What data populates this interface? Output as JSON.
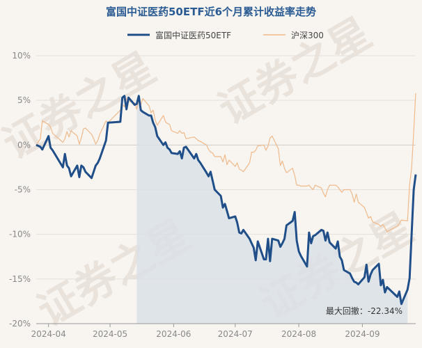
{
  "chart_data": {
    "type": "line",
    "title": "富国中证医药50ETF近6个月累计收益率走势",
    "watermark": "证券之星",
    "ylim": [
      -20,
      10
    ],
    "yticks": [
      "10%",
      "5%",
      "0%",
      "-5%",
      "-10%",
      "-15%",
      "-20%"
    ],
    "ytick_values": [
      10,
      5,
      0,
      -5,
      -10,
      -15,
      -20
    ],
    "xticks": [
      {
        "date": "2024-04-01",
        "label": "2024-04"
      },
      {
        "date": "2024-05-01",
        "label": "2024-05"
      },
      {
        "date": "2024-06-01",
        "label": "2024-06"
      },
      {
        "date": "2024-07-01",
        "label": "2024-07"
      },
      {
        "date": "2024-08-01",
        "label": "2024-08"
      },
      {
        "date": "2024-09-01",
        "label": "2024-09"
      }
    ],
    "legend_position": "top",
    "grid": "horizontal",
    "max_drawdown": {
      "label": "最大回撤：-22.34%",
      "start": "2024-05-14",
      "end": "2024-09-23"
    },
    "series": [
      {
        "name": "富国中证医药50ETF",
        "color": "#1f4e89",
        "x": [
          "2024-03-26",
          "2024-03-28",
          "2024-03-29",
          "2024-04-01",
          "2024-04-02",
          "2024-04-03",
          "2024-04-08",
          "2024-04-09",
          "2024-04-10",
          "2024-04-11",
          "2024-04-12",
          "2024-04-15",
          "2024-04-16",
          "2024-04-17",
          "2024-04-18",
          "2024-04-19",
          "2024-04-22",
          "2024-04-23",
          "2024-04-24",
          "2024-04-25",
          "2024-04-26",
          "2024-04-29",
          "2024-04-30",
          "2024-05-06",
          "2024-05-07",
          "2024-05-08",
          "2024-05-09",
          "2024-05-10",
          "2024-05-13",
          "2024-05-14",
          "2024-05-15",
          "2024-05-16",
          "2024-05-17",
          "2024-05-20",
          "2024-05-21",
          "2024-05-22",
          "2024-05-23",
          "2024-05-24",
          "2024-05-27",
          "2024-05-28",
          "2024-05-29",
          "2024-05-30",
          "2024-05-31",
          "2024-06-03",
          "2024-06-04",
          "2024-06-05",
          "2024-06-06",
          "2024-06-07",
          "2024-06-11",
          "2024-06-12",
          "2024-06-13",
          "2024-06-14",
          "2024-06-17",
          "2024-06-18",
          "2024-06-19",
          "2024-06-20",
          "2024-06-21",
          "2024-06-24",
          "2024-06-25",
          "2024-06-26",
          "2024-06-27",
          "2024-06-28",
          "2024-07-01",
          "2024-07-02",
          "2024-07-03",
          "2024-07-04",
          "2024-07-05",
          "2024-07-08",
          "2024-07-09",
          "2024-07-10",
          "2024-07-11",
          "2024-07-12",
          "2024-07-15",
          "2024-07-16",
          "2024-07-17",
          "2024-07-18",
          "2024-07-19",
          "2024-07-22",
          "2024-07-23",
          "2024-07-24",
          "2024-07-25",
          "2024-07-26",
          "2024-07-29",
          "2024-07-30",
          "2024-07-31",
          "2024-08-01",
          "2024-08-02",
          "2024-08-05",
          "2024-08-06",
          "2024-08-07",
          "2024-08-08",
          "2024-08-09",
          "2024-08-12",
          "2024-08-13",
          "2024-08-14",
          "2024-08-15",
          "2024-08-16",
          "2024-08-19",
          "2024-08-20",
          "2024-08-21",
          "2024-08-22",
          "2024-08-23",
          "2024-08-26",
          "2024-08-27",
          "2024-08-28",
          "2024-08-29",
          "2024-08-30",
          "2024-09-02",
          "2024-09-03",
          "2024-09-04",
          "2024-09-05",
          "2024-09-06",
          "2024-09-09",
          "2024-09-10",
          "2024-09-11",
          "2024-09-12",
          "2024-09-13",
          "2024-09-18",
          "2024-09-19",
          "2024-09-20",
          "2024-09-23",
          "2024-09-24",
          "2024-09-25",
          "2024-09-26",
          "2024-09-27"
        ],
        "values": [
          0.0,
          -0.2,
          -0.5,
          1.0,
          -0.3,
          -0.6,
          -2.5,
          -1.0,
          -2.3,
          -2.6,
          -3.5,
          -2.3,
          -3.6,
          -2.3,
          -2.5,
          -3.0,
          -3.7,
          -3.0,
          -2.3,
          -2.0,
          -1.5,
          0.5,
          2.5,
          2.6,
          5.3,
          5.5,
          4.0,
          5.3,
          4.5,
          4.6,
          5.5,
          3.9,
          3.7,
          3.3,
          3.3,
          2.5,
          2.0,
          1.0,
          0.0,
          0.3,
          -0.3,
          -0.5,
          -0.9,
          -1.0,
          -0.7,
          -1.5,
          -0.3,
          -0.2,
          -1.5,
          -1.0,
          -1.7,
          -2.0,
          -3.1,
          -3.5,
          -3.0,
          -4.0,
          -5.0,
          -5.7,
          -7.0,
          -6.6,
          -7.4,
          -8.2,
          -8.0,
          -8.7,
          -9.8,
          -9.9,
          -9.5,
          -10.5,
          -11.0,
          -11.5,
          -12.9,
          -10.8,
          -12.8,
          -12.8,
          -10.5,
          -13.0,
          -10.5,
          -10.7,
          -11.4,
          -11.0,
          -10.5,
          -9.0,
          -8.5,
          -7.5,
          -10.7,
          -11.9,
          -12.4,
          -13.6,
          -9.8,
          -11.0,
          -10.2,
          -10.1,
          -9.5,
          -9.6,
          -10.7,
          -9.8,
          -10.9,
          -11.6,
          -10.8,
          -12.5,
          -12.9,
          -14.0,
          -14.4,
          -14.9,
          -15.3,
          -15.4,
          -15.6,
          -14.8,
          -13.4,
          -15.3,
          -14.5,
          -14.0,
          -13.3,
          -15.7,
          -15.1,
          -16.5,
          -15.9,
          -17.0,
          -16.4,
          -17.8,
          -16.2,
          -14.9,
          -10.0,
          -5.0,
          -3.3
        ]
      },
      {
        "name": "沪深300",
        "color": "#f0b98a",
        "x": [
          "2024-03-26",
          "2024-03-28",
          "2024-03-29",
          "2024-04-01",
          "2024-04-02",
          "2024-04-03",
          "2024-04-08",
          "2024-04-09",
          "2024-04-10",
          "2024-04-11",
          "2024-04-12",
          "2024-04-15",
          "2024-04-16",
          "2024-04-17",
          "2024-04-18",
          "2024-04-19",
          "2024-04-22",
          "2024-04-23",
          "2024-04-24",
          "2024-04-25",
          "2024-04-26",
          "2024-04-29",
          "2024-04-30",
          "2024-05-06",
          "2024-05-07",
          "2024-05-08",
          "2024-05-09",
          "2024-05-10",
          "2024-05-13",
          "2024-05-14",
          "2024-05-15",
          "2024-05-16",
          "2024-05-17",
          "2024-05-20",
          "2024-05-21",
          "2024-05-22",
          "2024-05-23",
          "2024-05-24",
          "2024-05-27",
          "2024-05-28",
          "2024-05-29",
          "2024-05-30",
          "2024-05-31",
          "2024-06-03",
          "2024-06-04",
          "2024-06-05",
          "2024-06-06",
          "2024-06-07",
          "2024-06-11",
          "2024-06-12",
          "2024-06-13",
          "2024-06-14",
          "2024-06-17",
          "2024-06-18",
          "2024-06-19",
          "2024-06-20",
          "2024-06-21",
          "2024-06-24",
          "2024-06-25",
          "2024-06-26",
          "2024-06-27",
          "2024-06-28",
          "2024-07-01",
          "2024-07-02",
          "2024-07-03",
          "2024-07-04",
          "2024-07-05",
          "2024-07-08",
          "2024-07-09",
          "2024-07-10",
          "2024-07-11",
          "2024-07-12",
          "2024-07-15",
          "2024-07-16",
          "2024-07-17",
          "2024-07-18",
          "2024-07-19",
          "2024-07-22",
          "2024-07-23",
          "2024-07-24",
          "2024-07-25",
          "2024-07-26",
          "2024-07-29",
          "2024-07-30",
          "2024-07-31",
          "2024-08-01",
          "2024-08-02",
          "2024-08-05",
          "2024-08-06",
          "2024-08-07",
          "2024-08-08",
          "2024-08-09",
          "2024-08-12",
          "2024-08-13",
          "2024-08-14",
          "2024-08-15",
          "2024-08-16",
          "2024-08-19",
          "2024-08-20",
          "2024-08-21",
          "2024-08-22",
          "2024-08-23",
          "2024-08-26",
          "2024-08-27",
          "2024-08-28",
          "2024-08-29",
          "2024-08-30",
          "2024-09-02",
          "2024-09-03",
          "2024-09-04",
          "2024-09-05",
          "2024-09-06",
          "2024-09-09",
          "2024-09-10",
          "2024-09-11",
          "2024-09-12",
          "2024-09-13",
          "2024-09-18",
          "2024-09-19",
          "2024-09-20",
          "2024-09-23",
          "2024-09-24",
          "2024-09-25",
          "2024-09-26",
          "2024-09-27"
        ],
        "values": [
          0.0,
          0.7,
          2.7,
          2.3,
          2.0,
          1.3,
          0.3,
          0.7,
          1.5,
          0.9,
          1.6,
          1.0,
          0.1,
          0.8,
          1.8,
          1.9,
          1.2,
          0.7,
          0.1,
          0.5,
          1.2,
          2.7,
          2.5,
          3.9,
          4.5,
          4.3,
          5.2,
          4.9,
          4.7,
          4.0,
          5.3,
          4.5,
          5.2,
          4.4,
          3.6,
          3.9,
          2.8,
          2.2,
          3.3,
          2.6,
          2.4,
          2.3,
          1.6,
          1.3,
          1.6,
          1.3,
          1.4,
          0.7,
          0.9,
          0.7,
          0.5,
          0.4,
          0.0,
          -0.5,
          -0.8,
          -0.9,
          -1.3,
          -1.3,
          -1.9,
          -1.1,
          -2.2,
          -1.7,
          -2.4,
          -2.0,
          -2.7,
          -2.8,
          -3.0,
          -2.0,
          -0.8,
          -0.8,
          -0.6,
          -0.1,
          0.0,
          -0.6,
          -0.1,
          0.8,
          1.0,
          -0.4,
          -2.3,
          -1.8,
          -2.6,
          -3.1,
          -2.6,
          -3.4,
          -4.5,
          -4.5,
          -4.6,
          -4.6,
          -4.5,
          -4.8,
          -5.0,
          -4.5,
          -4.8,
          -5.4,
          -5.8,
          -5.0,
          -4.5,
          -4.5,
          -4.7,
          -5.0,
          -5.3,
          -5.0,
          -5.0,
          -5.5,
          -6.4,
          -5.5,
          -6.4,
          -7.0,
          -7.6,
          -8.2,
          -8.0,
          -8.6,
          -8.9,
          -9.1,
          -8.9,
          -9.3,
          -9.7,
          -9.1,
          -8.8,
          -8.4,
          -8.5,
          -4.4,
          -2.6,
          1.5,
          5.8
        ]
      }
    ]
  }
}
